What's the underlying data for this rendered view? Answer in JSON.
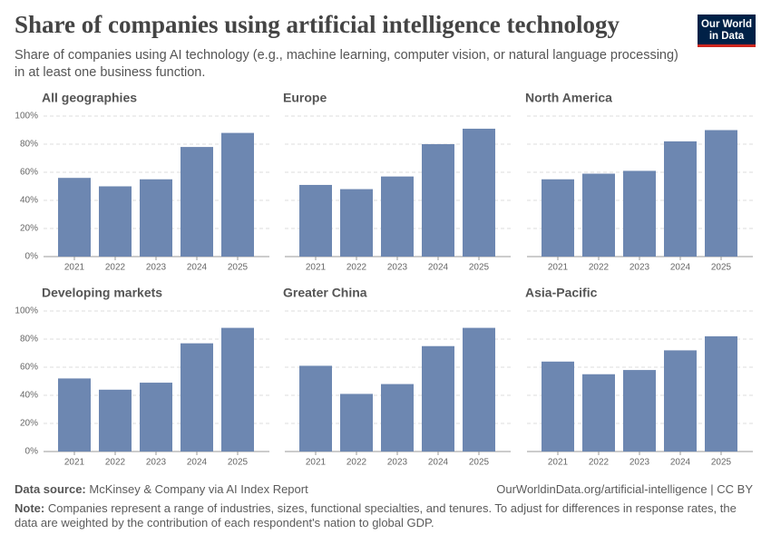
{
  "header": {
    "title": "Share of companies using artificial intelligence technology",
    "subtitle": "Share of companies using AI technology (e.g., machine learning, computer vision, or natural language processing) in at least one business function.",
    "logo": [
      "Our World",
      "in Data"
    ]
  },
  "chart_data": [
    {
      "type": "bar",
      "title": "All geographies",
      "categories": [
        "2021",
        "2022",
        "2023",
        "2024",
        "2025"
      ],
      "values": [
        56,
        50,
        55,
        78,
        88
      ],
      "color": "#6d87b1",
      "ylim": [
        0,
        100
      ],
      "yticks": [
        {
          "value": 0,
          "label": "0%"
        },
        {
          "value": 20,
          "label": "20%"
        },
        {
          "value": 40,
          "label": "40%"
        },
        {
          "value": 60,
          "label": "60%"
        },
        {
          "value": 80,
          "label": "80%"
        },
        {
          "value": 100,
          "label": "100%"
        }
      ],
      "grid": true
    },
    {
      "type": "bar",
      "title": "Europe",
      "categories": [
        "2021",
        "2022",
        "2023",
        "2024",
        "2025"
      ],
      "values": [
        51,
        48,
        57,
        80,
        91
      ],
      "color": "#6d87b1",
      "ylim": [
        0,
        100
      ],
      "yticks": [
        0,
        20,
        40,
        60,
        80,
        100
      ],
      "grid": true
    },
    {
      "type": "bar",
      "title": "North America",
      "categories": [
        "2021",
        "2022",
        "2023",
        "2024",
        "2025"
      ],
      "values": [
        55,
        59,
        61,
        82,
        90
      ],
      "color": "#6d87b1",
      "ylim": [
        0,
        100
      ],
      "yticks": [
        0,
        20,
        40,
        60,
        80,
        100
      ],
      "grid": true
    },
    {
      "type": "bar",
      "title": "Developing markets",
      "categories": [
        "2021",
        "2022",
        "2023",
        "2024",
        "2025"
      ],
      "values": [
        52,
        44,
        49,
        77,
        88
      ],
      "color": "#6d87b1",
      "ylim": [
        0,
        100
      ],
      "yticks": [
        {
          "value": 0,
          "label": "0%"
        },
        {
          "value": 20,
          "label": "20%"
        },
        {
          "value": 40,
          "label": "40%"
        },
        {
          "value": 60,
          "label": "60%"
        },
        {
          "value": 80,
          "label": "80%"
        },
        {
          "value": 100,
          "label": "100%"
        }
      ],
      "grid": true
    },
    {
      "type": "bar",
      "title": "Greater China",
      "categories": [
        "2021",
        "2022",
        "2023",
        "2024",
        "2025"
      ],
      "values": [
        61,
        41,
        48,
        75,
        88
      ],
      "color": "#6d87b1",
      "ylim": [
        0,
        100
      ],
      "yticks": [
        0,
        20,
        40,
        60,
        80,
        100
      ],
      "grid": true
    },
    {
      "type": "bar",
      "title": "Asia-Pacific",
      "categories": [
        "2021",
        "2022",
        "2023",
        "2024",
        "2025"
      ],
      "values": [
        64,
        55,
        58,
        72,
        82
      ],
      "color": "#6d87b1",
      "ylim": [
        0,
        100
      ],
      "yticks": [
        0,
        20,
        40,
        60,
        80,
        100
      ],
      "grid": true
    }
  ],
  "footer": {
    "source_label": "Data source:",
    "source": "McKinsey & Company via AI Index Report",
    "url": "OurWorldinData.org/artificial-intelligence | CC BY",
    "note_label": "Note:",
    "note": "Companies represent a range of industries, sizes, functional specialties, and tenures. To adjust for differences in response rates, the data are weighted by the contribution of each respondent's nation to global GDP."
  }
}
